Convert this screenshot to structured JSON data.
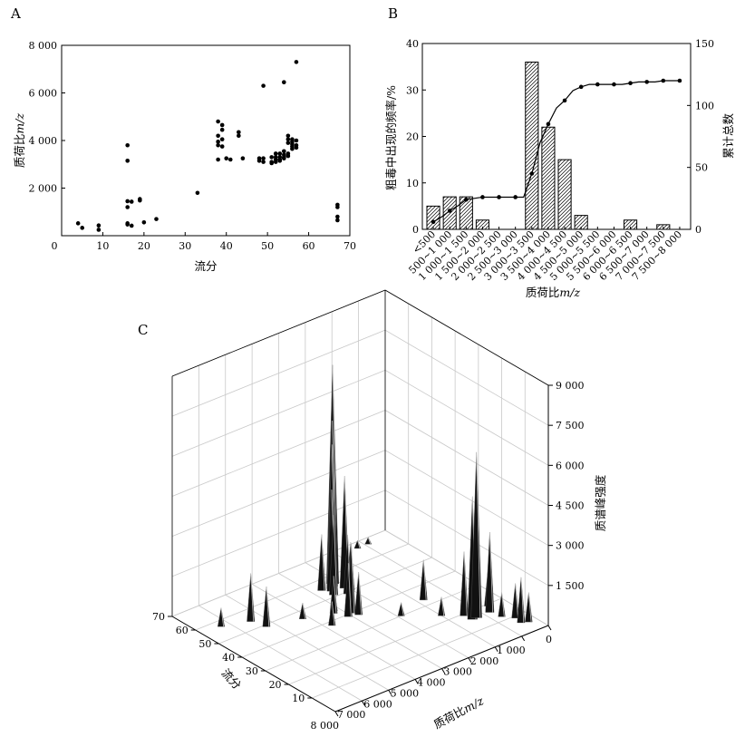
{
  "chart_data": [
    {
      "panel": "A",
      "type": "scatter",
      "xlabel": "流分",
      "ylabel": "质荷比",
      "ylabel_italic": "m/z",
      "xlim": [
        0,
        70
      ],
      "ylim": [
        0,
        8000
      ],
      "x_ticks": [
        0,
        10,
        20,
        30,
        40,
        50,
        60,
        70
      ],
      "x_tick_labels": [
        "0",
        "10",
        "20",
        "30",
        "40",
        "50",
        "60",
        "70"
      ],
      "y_ticks": [
        2000,
        4000,
        6000,
        8000
      ],
      "y_tick_labels": [
        "2 000",
        "4 000",
        "6 000",
        "8 000"
      ],
      "points": [
        [
          4,
          520
        ],
        [
          5,
          330
        ],
        [
          9,
          430
        ],
        [
          9,
          250
        ],
        [
          16,
          3800
        ],
        [
          16,
          3150
        ],
        [
          16,
          1450
        ],
        [
          16,
          1200
        ],
        [
          16,
          520
        ],
        [
          16,
          470
        ],
        [
          17,
          1430
        ],
        [
          17,
          420
        ],
        [
          19,
          1540
        ],
        [
          19,
          1480
        ],
        [
          20,
          560
        ],
        [
          23,
          700
        ],
        [
          33,
          1800
        ],
        [
          38,
          4800
        ],
        [
          38,
          4200
        ],
        [
          38,
          3950
        ],
        [
          38,
          3800
        ],
        [
          38,
          3200
        ],
        [
          39,
          4650
        ],
        [
          39,
          4450
        ],
        [
          39,
          4050
        ],
        [
          39,
          3750
        ],
        [
          40,
          3250
        ],
        [
          41,
          3200
        ],
        [
          43,
          4350
        ],
        [
          43,
          4200
        ],
        [
          44,
          3250
        ],
        [
          48,
          3250
        ],
        [
          48,
          3150
        ],
        [
          49,
          3250
        ],
        [
          49,
          3100
        ],
        [
          49,
          6300
        ],
        [
          51,
          3300
        ],
        [
          51,
          3100
        ],
        [
          51,
          3050
        ],
        [
          52,
          3450
        ],
        [
          52,
          3300
        ],
        [
          52,
          3200
        ],
        [
          52,
          3100
        ],
        [
          53,
          3450
        ],
        [
          53,
          3300
        ],
        [
          53,
          3200
        ],
        [
          53,
          3150
        ],
        [
          54,
          6450
        ],
        [
          54,
          3550
        ],
        [
          54,
          3400
        ],
        [
          54,
          3300
        ],
        [
          54,
          3250
        ],
        [
          55,
          4200
        ],
        [
          55,
          4050
        ],
        [
          55,
          3900
        ],
        [
          55,
          3450
        ],
        [
          55,
          3350
        ],
        [
          56,
          4050
        ],
        [
          56,
          3950
        ],
        [
          56,
          3850
        ],
        [
          56,
          3750
        ],
        [
          56,
          3650
        ],
        [
          57,
          7300
        ],
        [
          57,
          4000
        ],
        [
          57,
          3800
        ],
        [
          57,
          3700
        ],
        [
          67,
          1300
        ],
        [
          67,
          1200
        ],
        [
          67,
          800
        ],
        [
          67,
          650
        ]
      ]
    },
    {
      "panel": "B",
      "type": "bar",
      "xlabel": "质荷比",
      "xlabel_italic": "m/z",
      "ylabel_left": "粗毒中出现的频率/%",
      "ylabel_right": "累计总数",
      "ylim_left": [
        0,
        40
      ],
      "ylim_right": [
        0,
        150
      ],
      "y_left_ticks": [
        0,
        10,
        20,
        30,
        40
      ],
      "y_left_tick_labels": [
        "0",
        "10",
        "20",
        "30",
        "40"
      ],
      "y_right_ticks": [
        0,
        50,
        100,
        150
      ],
      "y_right_tick_labels": [
        "0",
        "50",
        "100",
        "150"
      ],
      "categories": [
        "<500",
        "500~1 000",
        "1 000~1 500",
        "1 500~2 000",
        "2 000~2 500",
        "2 500~3 000",
        "3 000~3 500",
        "3 500~4 000",
        "4 000~4 500",
        "4 500~5 000",
        "5 000~5 500",
        "5 500~6 000",
        "6 000~6 500",
        "6 500~7 000",
        "7 000~7 500",
        "7 500~8 000"
      ],
      "bar_values": [
        5,
        7,
        7,
        2,
        0,
        0,
        36,
        22,
        15,
        3,
        0,
        0,
        2,
        0,
        1,
        0
      ],
      "cumulative_line_x": [
        0,
        0.5,
        1,
        1.5,
        2,
        2.5,
        3,
        3.5,
        4,
        4.5,
        5,
        5.5,
        6,
        6.5,
        7,
        7.5,
        8,
        8.5,
        9,
        9.5,
        10,
        10.5,
        11,
        11.5,
        12,
        12.5,
        13,
        13.5,
        14,
        14.5,
        15
      ],
      "cumulative_line_y": [
        6,
        10,
        15,
        19,
        24,
        25,
        26,
        26,
        26,
        26,
        26,
        26,
        45,
        70,
        85,
        98,
        104,
        112,
        115,
        117,
        117,
        117,
        117,
        117,
        118,
        119,
        119,
        119,
        120,
        120,
        120
      ]
    },
    {
      "panel": "C",
      "type": "surface3d",
      "x_axis_label": "质荷比",
      "x_axis_label_italic": "m/z",
      "y_axis_label": "流分",
      "z_axis_label": "质谱峰强度",
      "x_ticks": [
        0,
        1000,
        2000,
        3000,
        4000,
        5000,
        6000,
        7000,
        8000
      ],
      "x_tick_labels": [
        "0",
        "1 000",
        "2 000",
        "3 000",
        "4 000",
        "5 000",
        "6 000",
        "7 000",
        "8 000"
      ],
      "y_ticks": [
        10,
        20,
        30,
        40,
        50,
        60,
        70
      ],
      "y_tick_labels": [
        "10",
        "20",
        "30",
        "40",
        "50",
        "60",
        "70"
      ],
      "z_ticks": [
        1500,
        3000,
        4500,
        6000,
        7500,
        9000
      ],
      "z_tick_labels": [
        "1 500",
        "3 000",
        "4 500",
        "6 000",
        "7 500",
        "9 000"
      ],
      "zlim": [
        0,
        9000
      ],
      "peaks": [
        {
          "mz": 3200,
          "fr": 56,
          "h": 8200
        },
        {
          "mz": 3300,
          "fr": 55,
          "h": 6200
        },
        {
          "mz": 3400,
          "fr": 54,
          "h": 5400
        },
        {
          "mz": 3100,
          "fr": 52,
          "h": 4200
        },
        {
          "mz": 3500,
          "fr": 53,
          "h": 3800
        },
        {
          "mz": 3600,
          "fr": 51,
          "h": 3000
        },
        {
          "mz": 3250,
          "fr": 49,
          "h": 2200
        },
        {
          "mz": 3050,
          "fr": 50,
          "h": 1800
        },
        {
          "mz": 3900,
          "fr": 40,
          "h": 2600
        },
        {
          "mz": 4100,
          "fr": 39,
          "h": 2000
        },
        {
          "mz": 3800,
          "fr": 38,
          "h": 1600
        },
        {
          "mz": 4300,
          "fr": 43,
          "h": 1400
        },
        {
          "mz": 3150,
          "fr": 57,
          "h": 2500
        },
        {
          "mz": 3700,
          "fr": 55,
          "h": 2100
        },
        {
          "mz": 1300,
          "fr": 16,
          "h": 6200
        },
        {
          "mz": 1450,
          "fr": 16,
          "h": 4600
        },
        {
          "mz": 1200,
          "fr": 17,
          "h": 3400
        },
        {
          "mz": 1500,
          "fr": 19,
          "h": 2400
        },
        {
          "mz": 800,
          "fr": 16,
          "h": 3000
        },
        {
          "mz": 1100,
          "fr": 18,
          "h": 1800
        },
        {
          "mz": 600,
          "fr": 19,
          "h": 1400
        },
        {
          "mz": 500,
          "fr": 6,
          "h": 1700
        },
        {
          "mz": 450,
          "fr": 9,
          "h": 1300
        },
        {
          "mz": 300,
          "fr": 5,
          "h": 1100
        },
        {
          "mz": 700,
          "fr": 12,
          "h": 900
        },
        {
          "mz": 1800,
          "fr": 33,
          "h": 1500
        },
        {
          "mz": 2000,
          "fr": 23,
          "h": 700
        },
        {
          "mz": 6300,
          "fr": 49,
          "h": 1500
        },
        {
          "mz": 6450,
          "fr": 54,
          "h": 1800
        },
        {
          "mz": 7300,
          "fr": 57,
          "h": 700
        },
        {
          "mz": 1300,
          "fr": 67,
          "h": 300
        },
        {
          "mz": 900,
          "fr": 67,
          "h": 250
        },
        {
          "mz": 4800,
          "fr": 38,
          "h": 900
        },
        {
          "mz": 4200,
          "fr": 44,
          "h": 800
        },
        {
          "mz": 2900,
          "fr": 30,
          "h": 500
        },
        {
          "mz": 5200,
          "fr": 46,
          "h": 600
        }
      ]
    }
  ]
}
